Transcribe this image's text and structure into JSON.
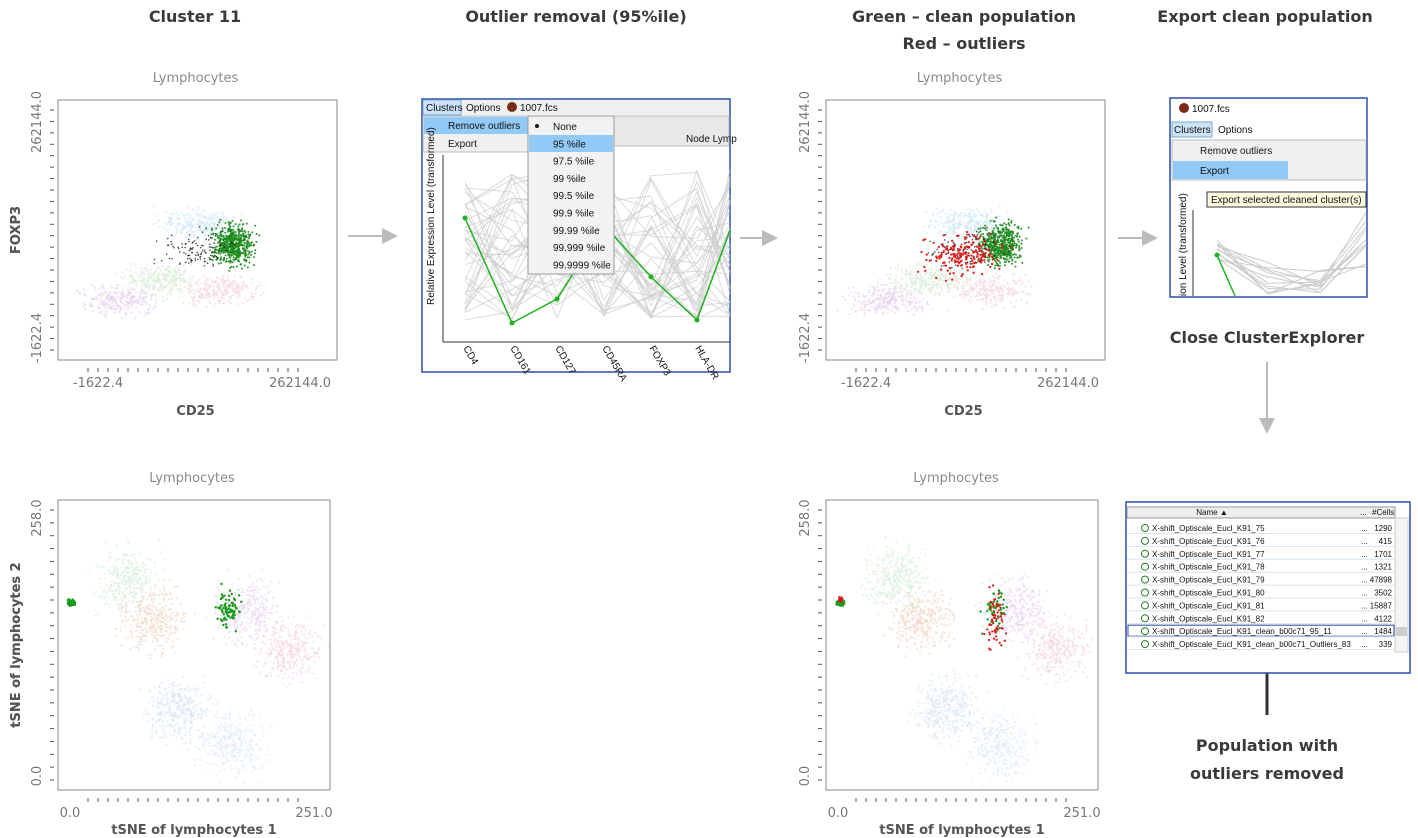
{
  "steps": {
    "cluster": "Cluster 11",
    "removal": "Outlier removal (95%ile)",
    "result": [
      "Green – clean population",
      "Red – outliers"
    ],
    "export": "Export clean population",
    "close": "Close ClusterExplorer",
    "final": [
      "Population with",
      "outliers removed"
    ]
  },
  "scatter_plots": [
    {
      "title": "Lymphocytes",
      "x_label": "CD25",
      "y_label": "FOXP3",
      "x_ticks": [
        "-1622.4",
        "262144.0"
      ],
      "y_ticks": [
        "262144.0",
        "-1622.4"
      ]
    },
    {
      "title": "Lymphocytes",
      "x_label": "CD25",
      "y_label": "FOXP3",
      "x_ticks": [
        "-1622.4",
        "262144.0"
      ],
      "y_ticks": [
        "262144.0",
        "-1622.4"
      ]
    },
    {
      "title": "Lymphocytes",
      "x_label": "tSNE of lymphocytes 1",
      "y_label": "tSNE of lymphocytes 2",
      "x_ticks": [
        "0.0",
        "251.0"
      ],
      "y_ticks": [
        "258.0",
        "0.0"
      ]
    },
    {
      "title": "Lymphocytes",
      "x_label": "tSNE of lymphocytes 1",
      "y_label": "tSNE of lymphocytes 2",
      "x_ticks": [
        "0.0",
        "251.0"
      ],
      "y_ticks": [
        "258.0",
        "0.0"
      ]
    }
  ],
  "explorer": {
    "menu": [
      "Clusters",
      "Options",
      "1007.fcs"
    ],
    "submenu": [
      "Remove outliers",
      "Export"
    ],
    "options": [
      "None",
      "95 %ile",
      "97.5 %ile",
      "99 %ile",
      "99.5 %ile",
      "99.9 %ile",
      "99.99 %ile",
      "99.999 %ile",
      "99.9999 %ile"
    ],
    "header": "Node Lymp",
    "y_label": "Relative Expression Level (transformed)",
    "markers": [
      "CD4",
      "CD161",
      "CD127",
      "CD45RA",
      "FOXP3",
      "HLA-DR"
    ]
  },
  "export_window": {
    "file": "1007.fcs",
    "menu": [
      "Clusters",
      "Options"
    ],
    "submenu": [
      "Remove outliers",
      "Export"
    ],
    "tooltip": "Export selected cleaned cluster(s)",
    "y_label": "ion Level (transformed)"
  },
  "table": {
    "columns": [
      "Name ▲",
      "...",
      "#Cells"
    ],
    "rows": [
      [
        "X-shift_Optiscale_Eucl_K91_75",
        "...",
        "1290"
      ],
      [
        "X-shift_Optiscale_Eucl_K91_76",
        "...",
        "415"
      ],
      [
        "X-shift_Optiscale_Eucl_K91_77",
        "...",
        "1701"
      ],
      [
        "X-shift_Optiscale_Eucl_K91_78",
        "...",
        "1321"
      ],
      [
        "X-shift_Optiscale_Eucl_K91_79",
        "...",
        "47898"
      ],
      [
        "X-shift_Optiscale_Eucl_K91_80",
        "...",
        "3502"
      ],
      [
        "X-shift_Optiscale_Eucl_K91_81",
        "...",
        "15887"
      ],
      [
        "X-shift_Optiscale_Eucl_K91_82",
        "...",
        "4122"
      ],
      [
        "X-shift_Optiscale_Eucl_K91_clean_b00c71_95_11",
        "...",
        "1484"
      ],
      [
        "X-shift_Optiscale_Eucl_K91_clean_b00c71_Outliers_83",
        "...",
        "339"
      ]
    ]
  }
}
